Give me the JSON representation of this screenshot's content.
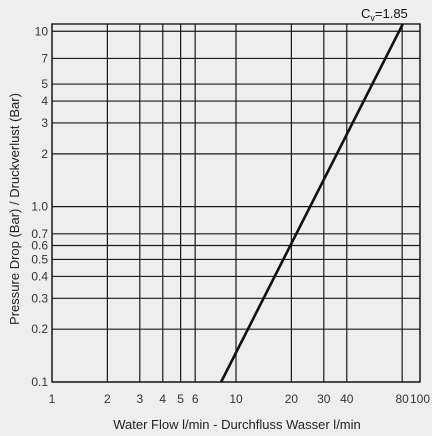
{
  "chart_data": {
    "type": "line",
    "xlabel": "Water Flow l/min - Durchfluss Wasser l/min",
    "ylabel": "Pressure Drop (Bar) / Druckverlust (Bar)",
    "x_scale": "log",
    "y_scale": "log",
    "xlim": [
      1,
      100
    ],
    "ylim": [
      0.1,
      11
    ],
    "x_ticks": [
      1,
      2,
      3,
      4,
      5,
      6,
      10,
      20,
      30,
      40,
      80,
      100
    ],
    "x_tick_labels": [
      "1",
      "2",
      "3",
      "4",
      "5",
      "6",
      "10",
      "20",
      "30",
      "40",
      "80",
      "100"
    ],
    "y_ticks": [
      0.1,
      0.2,
      0.3,
      0.4,
      0.5,
      0.6,
      0.7,
      1.0,
      2,
      3,
      4,
      5,
      7,
      10
    ],
    "y_tick_labels": [
      "0.1",
      "0.2",
      "0.3",
      "0.4",
      "0.5",
      "0.6",
      "0.7",
      "1.0",
      "2",
      "3",
      "4",
      "5",
      "7",
      "10"
    ],
    "grid": true,
    "annotation": {
      "prefix": "C",
      "subscript": "v",
      "suffix": "=1.85"
    },
    "series": [
      {
        "x": [
          8.3,
          80.6
        ],
        "y": [
          0.1,
          11
        ]
      }
    ],
    "colors": {
      "background": "#eeeeee",
      "line": "#111111",
      "grid": "#1a1a1a"
    }
  }
}
